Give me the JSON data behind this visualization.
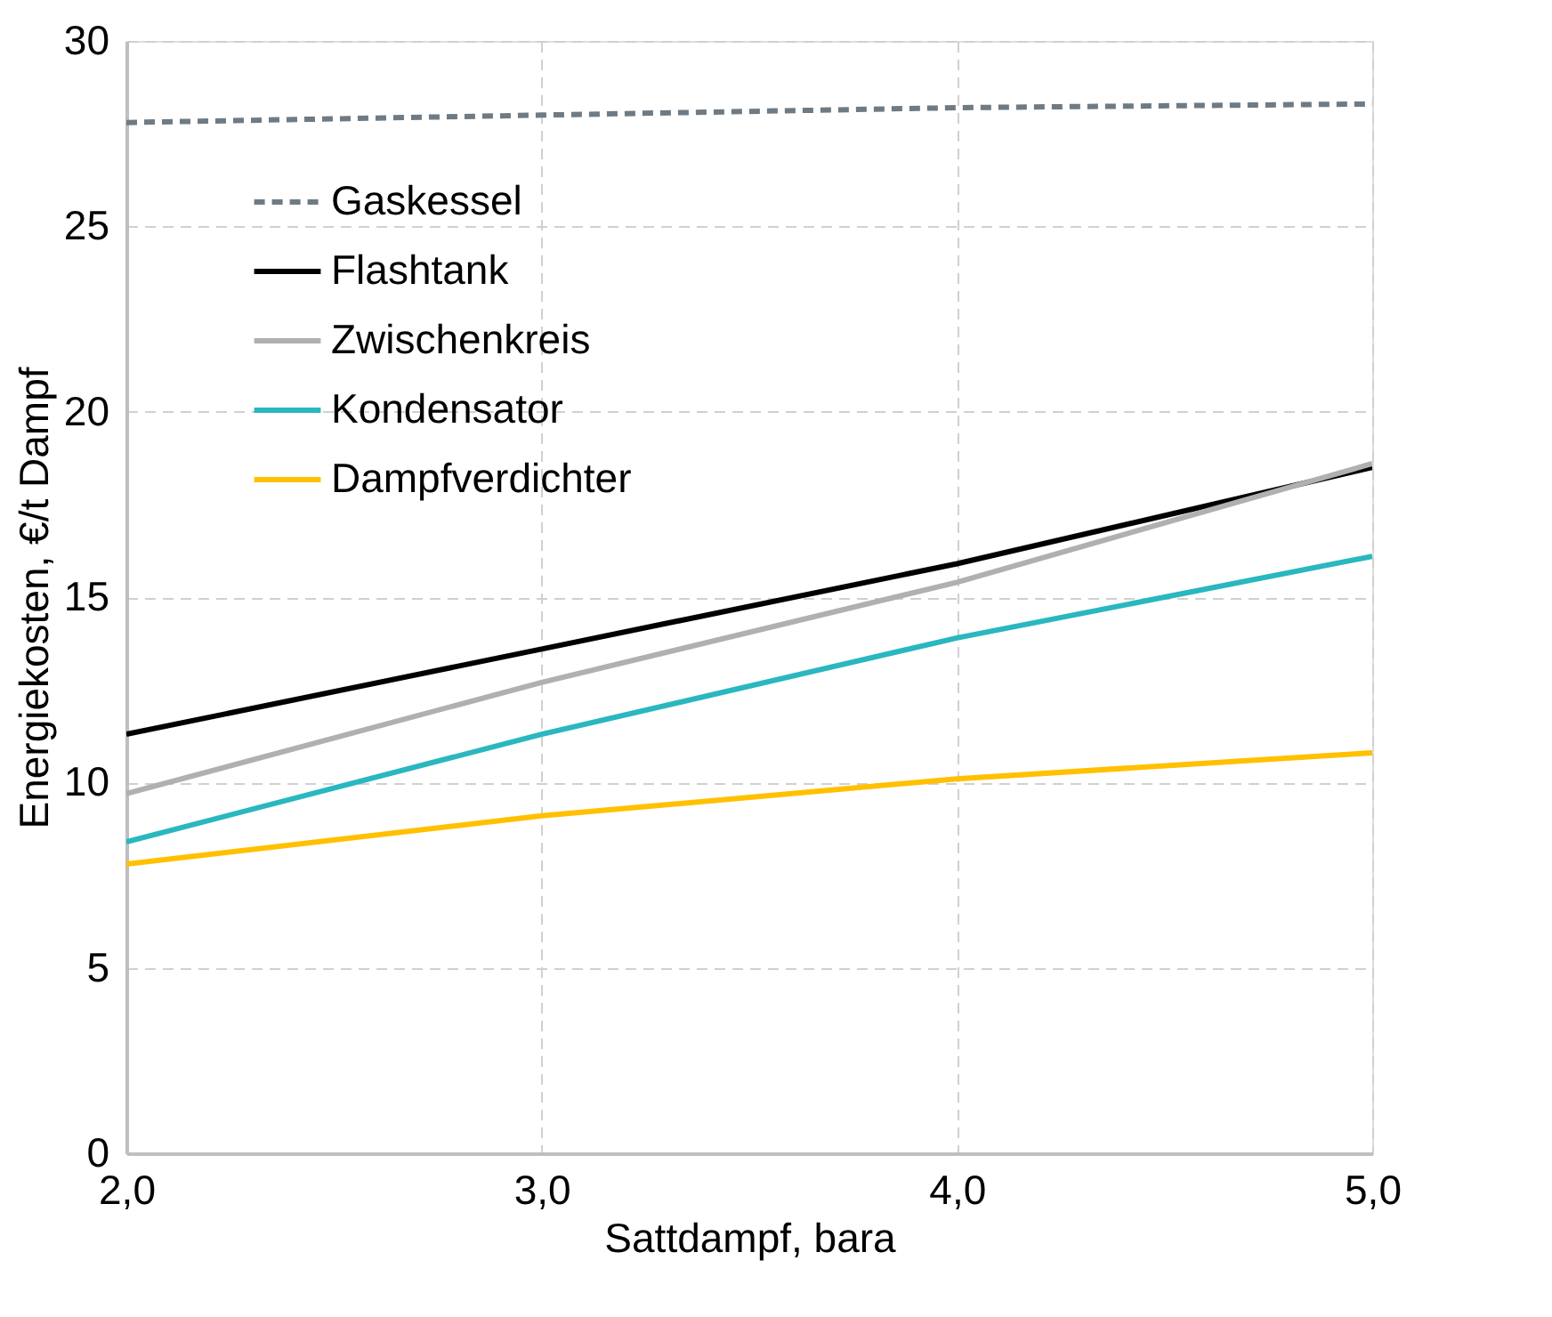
{
  "chart_data": {
    "type": "line",
    "x": [
      2.0,
      3.0,
      4.0,
      5.0
    ],
    "xlabel": "Sattdampf, bara",
    "ylabel": "Energiekosten, €/t Dampf",
    "xlim": [
      2.0,
      5.0
    ],
    "xticks": [
      {
        "value": 2,
        "label": "2,0"
      },
      {
        "value": 3,
        "label": "3,0"
      },
      {
        "value": 4,
        "label": "4,0"
      },
      {
        "value": 5,
        "label": "5,0"
      }
    ],
    "ylim": [
      0,
      30
    ],
    "yticks": [
      0,
      5,
      10,
      15,
      20,
      25,
      30
    ],
    "grid": true,
    "legend": "top left",
    "marker": "none",
    "series": [
      {
        "name": "Gaskessel",
        "color": "#6e7b85",
        "line_style": "dashed",
        "values": [
          27.8,
          28.0,
          28.2,
          28.3
        ]
      },
      {
        "name": "Flashtank",
        "color": "#000000",
        "line_style": "solid",
        "values": [
          11.3,
          13.6,
          15.9,
          18.5
        ]
      },
      {
        "name": "Zwischenkreis",
        "color": "#b0b0b0",
        "line_style": "solid",
        "values": [
          9.7,
          12.7,
          15.4,
          18.6
        ]
      },
      {
        "name": "Kondensator",
        "color": "#2ab7bf",
        "line_style": "solid",
        "values": [
          8.4,
          11.3,
          13.9,
          16.1
        ]
      },
      {
        "name": "Dampfverdichter",
        "color": "#ffc000",
        "line_style": "solid",
        "values": [
          7.8,
          9.1,
          10.1,
          10.8
        ]
      }
    ]
  }
}
